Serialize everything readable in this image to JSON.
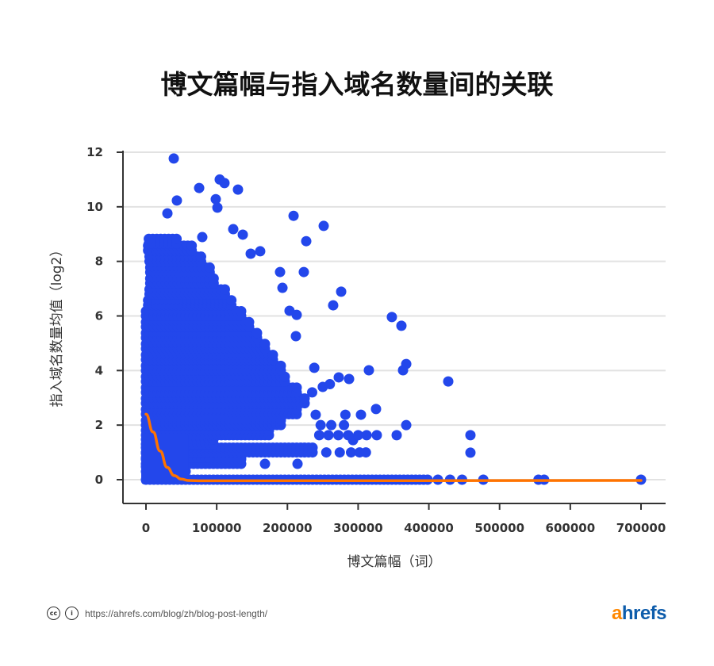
{
  "chart_data": {
    "type": "scatter",
    "title": "博文篇幅与指入域名数量间的关联",
    "xlabel": "博文篇幅（词）",
    "ylabel": "指入域名数量均值（log2）",
    "xlim": [
      -20000,
      730000
    ],
    "ylim": [
      -0.9,
      12.1
    ],
    "xticks": [
      0,
      100000,
      200000,
      300000,
      400000,
      500000,
      600000,
      700000
    ],
    "yticks": [
      0,
      2,
      4,
      6,
      8,
      10,
      12
    ],
    "grid": "horizontal",
    "colors": {
      "points": "#2347eb",
      "trend": "#ff7300",
      "grid": "#e2e2e2",
      "axis": "#333333"
    },
    "dense_bands": [
      {
        "y": 0.0,
        "x": [
          0,
          400000
        ]
      },
      {
        "y": 0.3,
        "x": [
          0,
          60000
        ]
      },
      {
        "y": 0.58,
        "x": [
          0,
          138000
        ]
      },
      {
        "y": 0.8,
        "x": [
          0,
          95000
        ]
      },
      {
        "y": 1.0,
        "x": [
          0,
          239000
        ]
      },
      {
        "y": 1.3,
        "x": [
          0,
          100000
        ]
      },
      {
        "y": 1.63,
        "x": [
          0,
          175000
        ]
      },
      {
        "y": 2.0,
        "x": [
          0,
          195000
        ]
      },
      {
        "y": 2.4,
        "x": [
          0,
          215000
        ]
      },
      {
        "y": 2.8,
        "x": [
          0,
          225000
        ]
      },
      {
        "y": 3.2,
        "x": [
          0,
          215000
        ]
      },
      {
        "y": 3.6,
        "x": [
          0,
          200000
        ]
      },
      {
        "y": 4.0,
        "x": [
          0,
          192000
        ]
      },
      {
        "y": 4.4,
        "x": [
          0,
          180000
        ]
      },
      {
        "y": 4.8,
        "x": [
          0,
          170000
        ]
      },
      {
        "y": 5.2,
        "x": [
          0,
          160000
        ]
      },
      {
        "y": 5.6,
        "x": [
          0,
          150000
        ]
      },
      {
        "y": 6.0,
        "x": [
          0,
          140000
        ]
      },
      {
        "y": 6.4,
        "x": [
          3000,
          125000
        ]
      },
      {
        "y": 6.8,
        "x": [
          5000,
          112000
        ]
      },
      {
        "y": 7.2,
        "x": [
          6000,
          100000
        ]
      },
      {
        "y": 7.6,
        "x": [
          6000,
          92000
        ]
      },
      {
        "y": 8.0,
        "x": [
          5000,
          82000
        ]
      },
      {
        "y": 8.4,
        "x": [
          3000,
          70000
        ]
      },
      {
        "y": 8.65,
        "x": [
          4000,
          45000
        ]
      }
    ],
    "points": [
      [
        39300,
        11.77
      ],
      [
        104300,
        11.0
      ],
      [
        111000,
        10.87
      ],
      [
        130100,
        10.63
      ],
      [
        75200,
        10.69
      ],
      [
        43700,
        10.23
      ],
      [
        98700,
        10.28
      ],
      [
        101000,
        9.97
      ],
      [
        30300,
        9.76
      ],
      [
        208700,
        9.67
      ],
      [
        251300,
        9.3
      ],
      [
        226600,
        8.74
      ],
      [
        136900,
        8.98
      ],
      [
        79600,
        8.89
      ],
      [
        123400,
        9.18
      ],
      [
        148100,
        8.28
      ],
      [
        161500,
        8.37
      ],
      [
        189600,
        7.61
      ],
      [
        223200,
        7.61
      ],
      [
        193000,
        7.03
      ],
      [
        276000,
        6.89
      ],
      [
        264700,
        6.39
      ],
      [
        347700,
        5.96
      ],
      [
        361200,
        5.64
      ],
      [
        203000,
        6.19
      ],
      [
        213100,
        6.04
      ],
      [
        212000,
        5.26
      ],
      [
        368000,
        4.24
      ],
      [
        363500,
        4.01
      ],
      [
        315200,
        4.01
      ],
      [
        272600,
        3.75
      ],
      [
        287200,
        3.69
      ],
      [
        427400,
        3.6
      ],
      [
        325300,
        2.59
      ],
      [
        368000,
        2.0
      ],
      [
        458800,
        1.63
      ],
      [
        458800,
        0.99
      ],
      [
        354500,
        1.63
      ],
      [
        326400,
        1.63
      ],
      [
        168300,
        0.58
      ],
      [
        214300,
        0.58
      ],
      [
        292800,
        1.45
      ],
      [
        304000,
        2.38
      ],
      [
        245000,
        1.63
      ],
      [
        258000,
        1.63
      ],
      [
        272000,
        1.63
      ],
      [
        286000,
        1.63
      ],
      [
        300000,
        1.63
      ],
      [
        312000,
        1.63
      ],
      [
        274000,
        1.0
      ],
      [
        290000,
        1.0
      ],
      [
        302000,
        1.0
      ],
      [
        311000,
        1.0
      ],
      [
        255000,
        1.0
      ],
      [
        247000,
        2.0
      ],
      [
        262000,
        2.0
      ],
      [
        280000,
        2.0
      ],
      [
        240000,
        2.38
      ],
      [
        282000,
        2.38
      ],
      [
        235000,
        3.2
      ],
      [
        250000,
        3.4
      ],
      [
        260000,
        3.5
      ],
      [
        238000,
        4.1
      ],
      [
        412800,
        0.0
      ],
      [
        430000,
        0.0
      ],
      [
        447000,
        0.0
      ],
      [
        477000,
        0.0
      ],
      [
        555000,
        0.0
      ],
      [
        563000,
        0.0
      ],
      [
        700000,
        0.0
      ]
    ],
    "trend": [
      [
        0,
        2.4
      ],
      [
        10000,
        1.75
      ],
      [
        20000,
        1.05
      ],
      [
        30000,
        0.45
      ],
      [
        40000,
        0.15
      ],
      [
        50000,
        0.02
      ],
      [
        60000,
        -0.03
      ],
      [
        80000,
        -0.04
      ],
      [
        700000,
        -0.03
      ]
    ]
  },
  "footer": {
    "url": "https://ahrefs.com/blog/zh/blog-post-length/",
    "cc_icon": "creative-commons-icon",
    "by_icon": "attribution-icon",
    "logo": {
      "accent": "a",
      "rest": "hrefs"
    }
  }
}
